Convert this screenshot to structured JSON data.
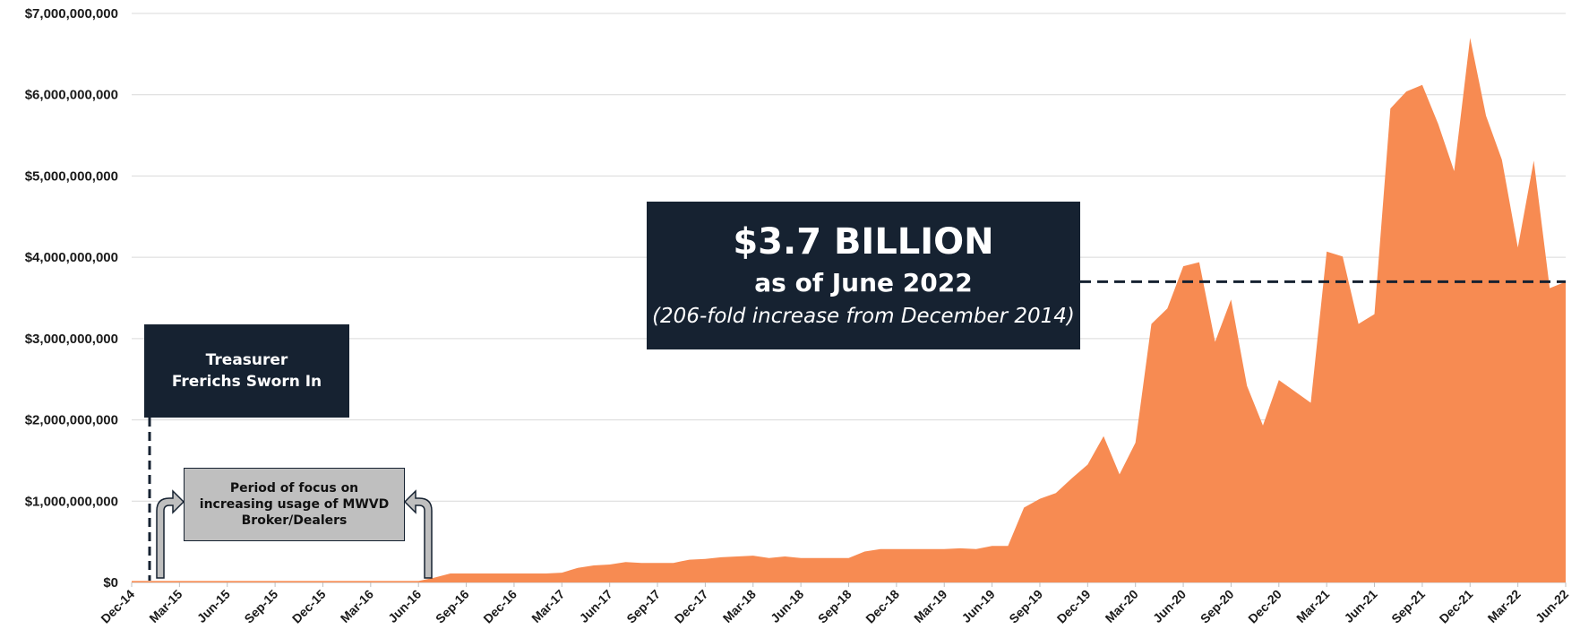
{
  "chart_data": {
    "type": "area",
    "title": "",
    "xlabel": "",
    "ylabel": "",
    "ylim": [
      0,
      7000000000
    ],
    "y_ticks": [
      "$0",
      "$1,000,000,000",
      "$2,000,000,000",
      "$3,000,000,000",
      "$4,000,000,000",
      "$5,000,000,000",
      "$6,000,000,000",
      "$7,000,000,000"
    ],
    "y_tick_values": [
      0,
      1000000000,
      2000000000,
      3000000000,
      4000000000,
      5000000000,
      6000000000,
      7000000000
    ],
    "x_ticks": [
      "Dec-14",
      "Mar-15",
      "Jun-15",
      "Sep-15",
      "Dec-15",
      "Mar-16",
      "Jun-16",
      "Sep-16",
      "Dec-16",
      "Mar-17",
      "Jun-17",
      "Sep-17",
      "Dec-17",
      "Mar-18",
      "Jun-18",
      "Sep-18",
      "Dec-18",
      "Mar-19",
      "Jun-19",
      "Sep-19",
      "Dec-19",
      "Mar-20",
      "Jun-20",
      "Sep-20",
      "Dec-20",
      "Mar-21",
      "Jun-21",
      "Sep-21",
      "Dec-21",
      "Mar-22",
      "Jun-22"
    ],
    "grid": true,
    "fill_color": "#f78b52",
    "series": [
      {
        "values": [
          18000000,
          18000000,
          18000000,
          18000000,
          18000000,
          18000000,
          18000000,
          18000000,
          18000000,
          18000000,
          18000000,
          18000000,
          18000000,
          18000000,
          18000000,
          18000000,
          18000000,
          18000000,
          18000000,
          60000000,
          110000000,
          110000000,
          110000000,
          110000000,
          110000000,
          110000000,
          110000000,
          120000000,
          180000000,
          210000000,
          220000000,
          250000000,
          240000000,
          240000000,
          240000000,
          280000000,
          290000000,
          310000000,
          320000000,
          330000000,
          300000000,
          320000000,
          300000000,
          300000000,
          300000000,
          300000000,
          380000000,
          410000000,
          410000000,
          410000000,
          410000000,
          410000000,
          420000000,
          410000000,
          450000000,
          450000000,
          920000000,
          1030000000,
          1100000000,
          1280000000,
          1450000000,
          1800000000,
          1330000000,
          1720000000,
          3180000000,
          3370000000,
          3890000000,
          3940000000,
          2960000000,
          3480000000,
          2420000000,
          1930000000,
          2490000000,
          2350000000,
          2210000000,
          4070000000,
          4010000000,
          3180000000,
          3300000000,
          5830000000,
          6040000000,
          6120000000,
          5640000000,
          5060000000,
          6700000000,
          5740000000,
          5200000000,
          4120000000,
          5190000000,
          3620000000,
          3700000000
        ]
      }
    ],
    "reference_line": {
      "value": 3700000000,
      "style": "dashed"
    },
    "annotations": {
      "headline": "$3.7 BILLION",
      "headline_sub": "as of June 2022",
      "headline_note": "(206-fold increase from December 2014)",
      "sworn_in": "Treasurer Frerichs Sworn In",
      "focus_period": "Period of focus on increasing usage of MWVD Broker/Dealers"
    },
    "colors": {
      "area": "#f78b52",
      "callout": "#162231",
      "period_box": "#bfbfbf",
      "grid": "#d9d9d9"
    }
  }
}
